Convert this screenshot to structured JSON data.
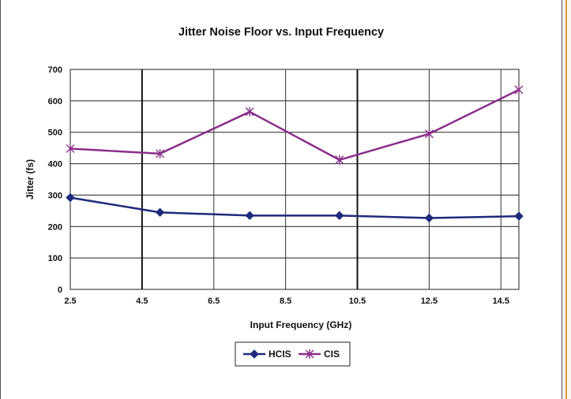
{
  "chart_data": {
    "type": "line",
    "title": "Jitter Noise Floor vs. Input Frequency",
    "xlabel": "Input Frequency (GHz)",
    "ylabel": "Jitter (fs)",
    "xlim": [
      2.5,
      15
    ],
    "ylim": [
      0,
      700
    ],
    "x_ticks": [
      "2.5",
      "4.5",
      "6.5",
      "8.5",
      "10.5",
      "12.5",
      "14.5"
    ],
    "y_ticks": [
      "0",
      "100",
      "200",
      "300",
      "400",
      "500",
      "600",
      "700"
    ],
    "grid": true,
    "legend": "bottom",
    "series": [
      {
        "name": "HCIS",
        "color": "#1f2a7a",
        "marker": "diamond",
        "x": [
          2.5,
          5,
          7.5,
          10,
          12.5,
          15
        ],
        "y": [
          292,
          245,
          235,
          235,
          227,
          233
        ]
      },
      {
        "name": "CIS",
        "color": "#8a2f8a",
        "marker": "x",
        "x": [
          2.5,
          5,
          7.5,
          10,
          12.5,
          15
        ],
        "y": [
          448,
          432,
          565,
          412,
          495,
          635
        ]
      }
    ]
  }
}
